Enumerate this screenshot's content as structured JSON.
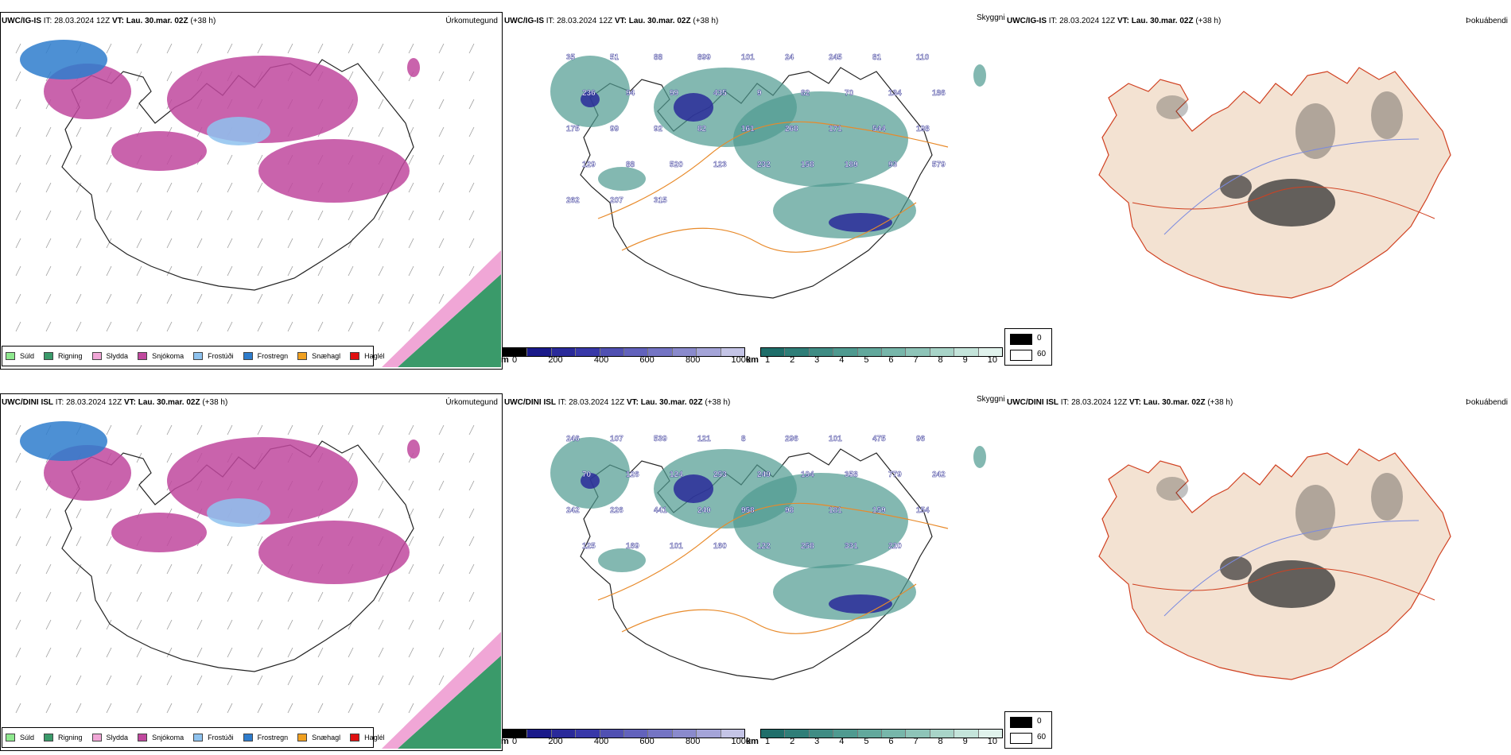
{
  "rows": [
    {
      "model": "UWC/IG-IS",
      "it_label": "IT:",
      "it_value": "28.03.2024 12Z",
      "vt_label": "VT:",
      "vt_value": "Lau. 30.mar. 02Z",
      "lead": "(+38 h)"
    },
    {
      "model": "UWC/DINI ISL",
      "it_label": "IT:",
      "it_value": "28.03.2024 12Z",
      "vt_label": "VT:",
      "vt_value": "Lau. 30.mar. 02Z",
      "lead": "(+38 h)"
    }
  ],
  "panel_titles": {
    "precip_type": "Úrkomutegund",
    "visibility": "Skyggni",
    "fog": "Þokuábendi"
  },
  "precip_legend": [
    {
      "label": "Súld",
      "color": "#8ee88e"
    },
    {
      "label": "Rigning",
      "color": "#3a9a6a"
    },
    {
      "label": "Slydda",
      "color": "#f0a6d6"
    },
    {
      "label": "Snjókoma",
      "color": "#c0489e"
    },
    {
      "label": "Frostúði",
      "color": "#8ec2ee"
    },
    {
      "label": "Frostregn",
      "color": "#2e7ccc"
    },
    {
      "label": "Snæhagl",
      "color": "#f0a020"
    },
    {
      "label": "Haglél",
      "color": "#e01010"
    }
  ],
  "ceiling_scale": {
    "unit": "m",
    "ticks": [
      "0",
      "200",
      "400",
      "600",
      "800",
      "1000"
    ],
    "colors": [
      "#000000",
      "#1a1a8a",
      "#2a2a9a",
      "#3838a8",
      "#5050b2",
      "#6262bc",
      "#7474c4",
      "#8a8acc",
      "#a4a4d8",
      "#c4c4e6"
    ]
  },
  "visibility_scale": {
    "unit": "km",
    "ticks": [
      "1",
      "2",
      "3",
      "4",
      "5",
      "6",
      "7",
      "8",
      "9",
      "10"
    ],
    "colors": [
      "#1f6e6a",
      "#2f7e78",
      "#3f8c84",
      "#4f9a90",
      "#62a89c",
      "#77b6aa",
      "#8ec4b8",
      "#a8d4c8",
      "#c4e4da",
      "#e0f2ec"
    ]
  },
  "fog_legend": {
    "items": [
      {
        "label": "0",
        "color": "#000000"
      },
      {
        "label": "60",
        "color": "#ffffff"
      }
    ]
  },
  "ceiling_labels_top": [
    "35",
    "51",
    "88",
    "899",
    "101",
    "24",
    "245",
    "81",
    "110",
    "236",
    "94",
    "99",
    "435",
    "9",
    "82",
    "70",
    "134",
    "186",
    "175",
    "99",
    "92",
    "82",
    "161",
    "268",
    "171",
    "544",
    "198",
    "129",
    "88",
    "520",
    "123",
    "232",
    "158",
    "189",
    "93",
    "579",
    "262",
    "207",
    "315"
  ],
  "ceiling_labels_bottom": [
    "246",
    "107",
    "539",
    "121",
    "8",
    "296",
    "101",
    "475",
    "96",
    "70",
    "126",
    "124",
    "253",
    "249",
    "194",
    "358",
    "779",
    "242",
    "242",
    "226",
    "441",
    "240",
    "958",
    "98",
    "181",
    "159",
    "154",
    "125",
    "169",
    "101",
    "160",
    "122",
    "258",
    "331",
    "220"
  ]
}
